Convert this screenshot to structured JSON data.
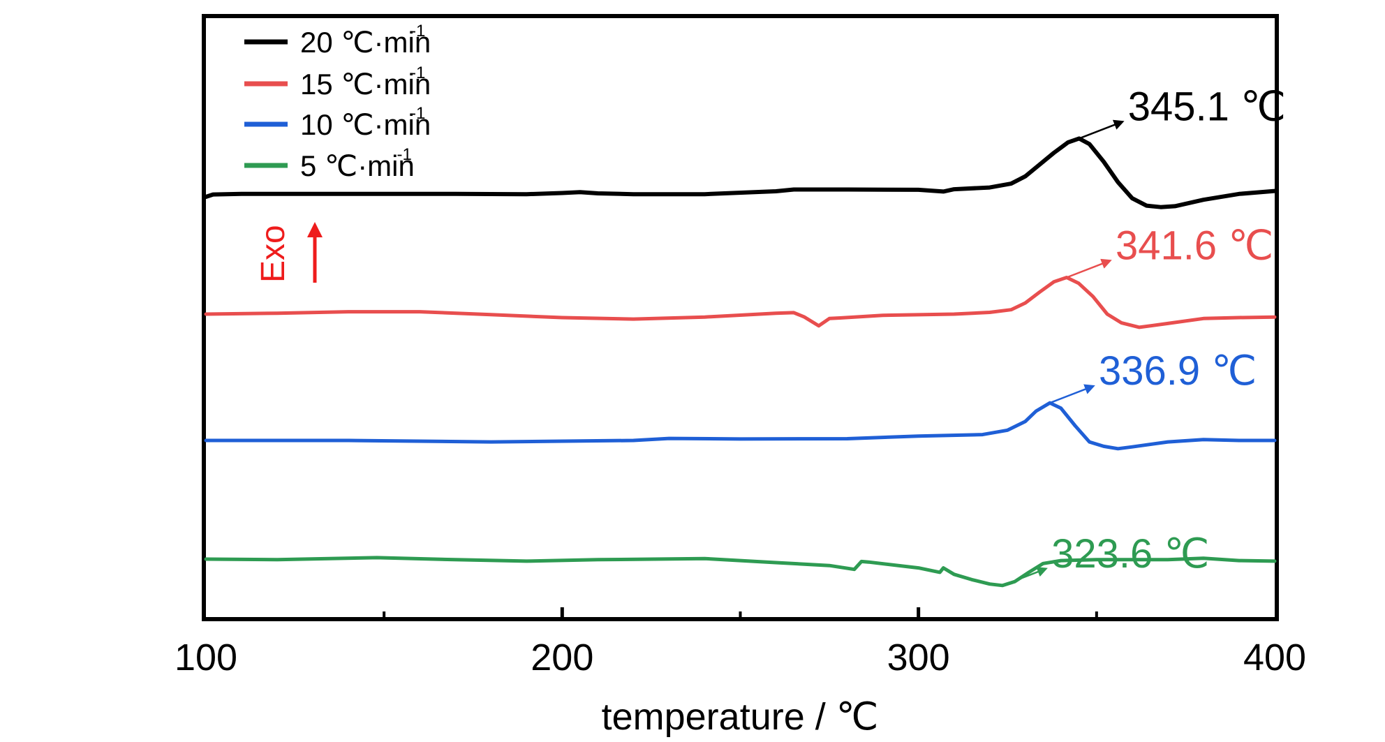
{
  "chart_data": {
    "type": "line",
    "title": "",
    "xlabel": "temperature / ℃",
    "ylabel": "",
    "xlim": [
      100,
      400
    ],
    "xticks": [
      100,
      200,
      300,
      400
    ],
    "x_minor_ticks": [
      150,
      250,
      350
    ],
    "grid": false,
    "legend_position": "top-left",
    "exo_indicator": {
      "text": "Exo",
      "color": "#ee1c1c",
      "direction": "up"
    },
    "series": [
      {
        "name": "20 ℃·min",
        "name_exponent": "-1",
        "color": "#000000",
        "peak": {
          "x": 345.1,
          "label": "345.1 ℃"
        },
        "x": [
          100,
          102,
          110,
          130,
          150,
          170,
          190,
          200,
          205,
          210,
          220,
          240,
          260,
          265,
          280,
          300,
          307,
          310,
          320,
          326,
          330,
          334,
          338,
          342,
          345.1,
          348,
          352,
          356,
          360,
          364,
          368,
          372,
          380,
          390,
          400
        ],
        "y": [
          0.0,
          0.8,
          1.0,
          1.0,
          1.0,
          1.0,
          0.9,
          1.3,
          1.6,
          1.2,
          0.9,
          0.9,
          1.9,
          2.5,
          2.5,
          2.4,
          1.8,
          2.6,
          3.2,
          4.5,
          7.0,
          11.0,
          15.0,
          18.6,
          19.9,
          18.0,
          12.0,
          5.0,
          -0.5,
          -3.0,
          -3.5,
          -3.2,
          -1.0,
          1.0,
          2.0
        ]
      },
      {
        "name": "15 ℃·min",
        "name_exponent": "-1",
        "color": "#e84e4e",
        "peak": {
          "x": 341.6,
          "label": "341.6 ℃"
        },
        "x": [
          100,
          120,
          140,
          160,
          180,
          200,
          220,
          240,
          260,
          265,
          268,
          272,
          275,
          278,
          290,
          310,
          320,
          326,
          330,
          334,
          338,
          341.6,
          345,
          349,
          353,
          357,
          362,
          370,
          380,
          390,
          400
        ],
        "y": [
          20.0,
          20.3,
          20.8,
          20.8,
          19.8,
          18.8,
          18.3,
          19.0,
          20.3,
          20.5,
          19.0,
          16.0,
          18.5,
          18.7,
          19.6,
          20.0,
          20.6,
          21.5,
          23.8,
          27.5,
          31.0,
          32.5,
          30.5,
          26.0,
          20.0,
          17.0,
          15.5,
          16.8,
          18.5,
          18.8,
          19.0
        ]
      },
      {
        "name": "10 ℃·min",
        "name_exponent": "-1",
        "color": "#1f5fd6",
        "peak": {
          "x": 336.9,
          "label": "336.9 ℃"
        },
        "x": [
          100,
          140,
          180,
          220,
          230,
          250,
          280,
          300,
          318,
          325,
          330,
          333,
          336.9,
          340,
          344,
          348,
          352,
          356,
          360,
          370,
          380,
          390,
          400
        ],
        "y": [
          45.0,
          45.0,
          44.5,
          45.0,
          45.7,
          45.5,
          45.6,
          46.5,
          47.0,
          48.5,
          51.5,
          55.0,
          57.8,
          56.0,
          50.0,
          44.5,
          43.0,
          42.2,
          42.8,
          44.5,
          45.3,
          45.0,
          45.0
        ]
      },
      {
        "name": "5 ℃·min",
        "name_exponent": "-1",
        "color": "#2e9b52",
        "peak": {
          "x": 323.6,
          "label": "323.6 ℃"
        },
        "x": [
          100,
          120,
          148,
          170,
          190,
          210,
          240,
          260,
          275,
          282,
          284,
          286,
          300,
          306,
          307,
          310,
          315,
          320,
          323.6,
          327,
          331,
          335,
          340,
          350,
          370,
          380,
          390,
          400
        ],
        "y": [
          70.0,
          69.8,
          70.5,
          69.8,
          69.3,
          69.8,
          70.2,
          68.8,
          67.8,
          66.5,
          69.2,
          69.0,
          67.0,
          65.5,
          67.0,
          64.8,
          63.0,
          61.5,
          61.0,
          62.3,
          65.5,
          68.5,
          69.5,
          69.8,
          69.8,
          70.3,
          69.5,
          69.3
        ]
      }
    ],
    "y_range_plot_order": "top-to-bottom"
  }
}
